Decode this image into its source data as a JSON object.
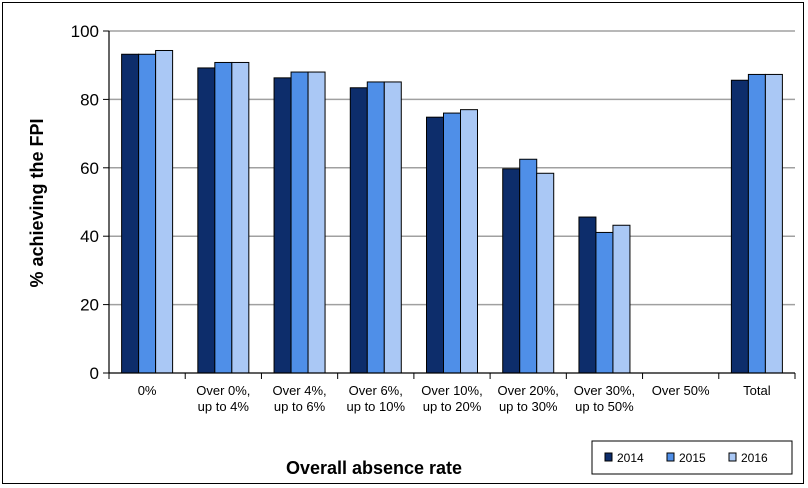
{
  "chart_data": {
    "type": "bar",
    "title": "",
    "xlabel": "Overall absence rate",
    "ylabel": "% achieving the FPI",
    "ylim": [
      0,
      100
    ],
    "yticks": [
      0,
      20,
      40,
      60,
      80,
      100
    ],
    "grid": true,
    "legend_position": "bottom-right",
    "categories": [
      [
        "0%"
      ],
      [
        "Over 0%,",
        "up to 4%"
      ],
      [
        "Over 4%,",
        "up to 6%"
      ],
      [
        "Over 6%,",
        "up to 10%"
      ],
      [
        "Over 10%,",
        "up to 20%"
      ],
      [
        "Over 20%,",
        "up to 30%"
      ],
      [
        "Over 30%,",
        "up to 50%"
      ],
      [
        "Over 50%"
      ],
      [
        "Total"
      ]
    ],
    "series": [
      {
        "name": "2014",
        "color": "#0d2d6b",
        "values": [
          93.2,
          89.2,
          86.3,
          83.4,
          74.8,
          59.7,
          45.6,
          null,
          85.6
        ]
      },
      {
        "name": "2015",
        "color": "#4f8fe8",
        "values": [
          93.2,
          90.8,
          88.0,
          85.1,
          76.0,
          62.5,
          41.1,
          null,
          87.3
        ]
      },
      {
        "name": "2016",
        "color": "#aac8f5",
        "values": [
          94.3,
          90.8,
          88.0,
          85.1,
          77.0,
          58.4,
          43.2,
          null,
          87.3
        ]
      }
    ]
  }
}
